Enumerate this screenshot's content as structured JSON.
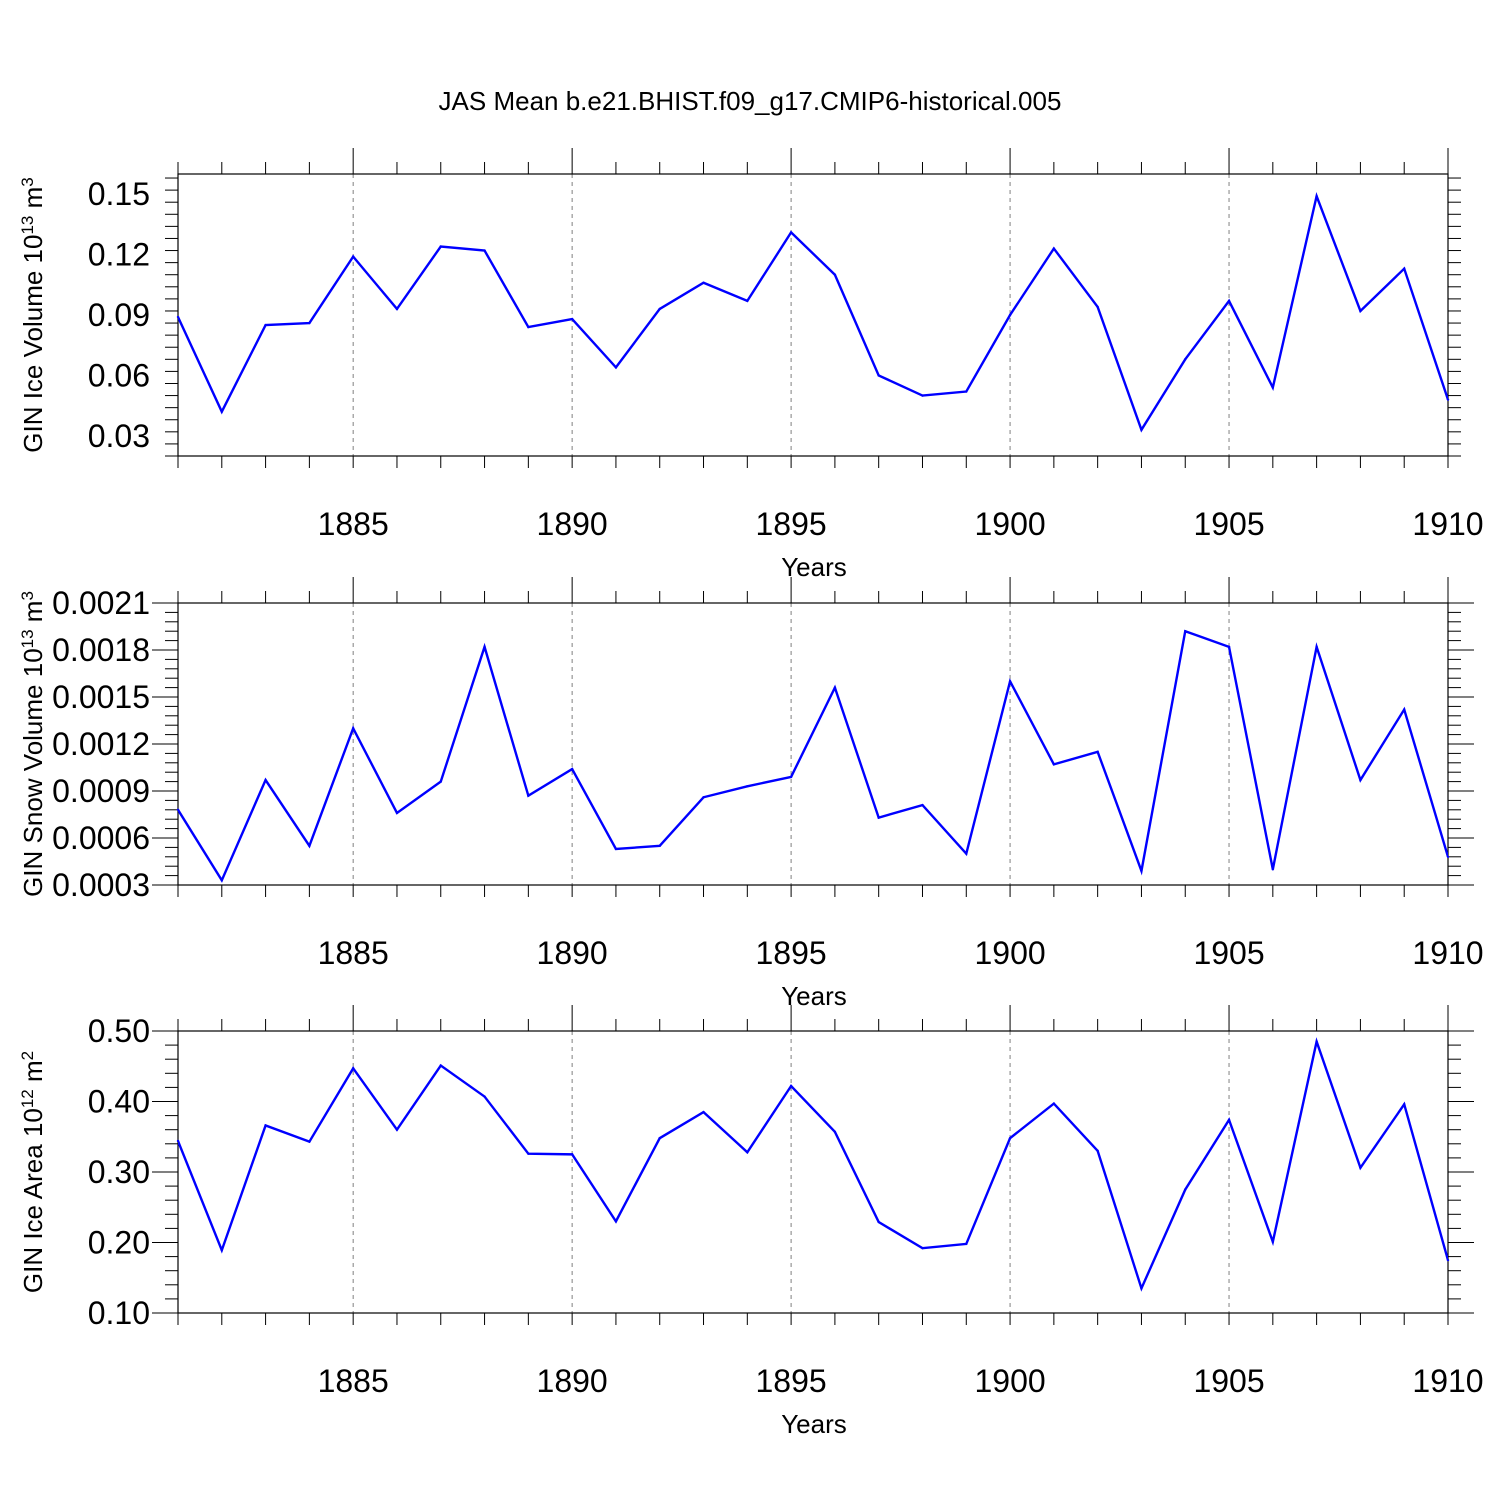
{
  "page_title": "JAS Mean b.e21.BHIST.f09_g17.CMIP6-historical.005",
  "colors": {
    "line": "#0000ff",
    "axis": "#000000",
    "grid": "#808080",
    "background": "#ffffff"
  },
  "chart_data": [
    {
      "type": "line",
      "title": "",
      "xlabel": "Years",
      "ylabel": {
        "text": "GIN Ice Volume 10",
        "exponent": "13",
        "unit": "m",
        "unit_exponent": "3"
      },
      "xlim": [
        1881,
        1910
      ],
      "ylim": [
        0.02,
        0.16
      ],
      "yticks": [
        0.03,
        0.06,
        0.09,
        0.12,
        0.15
      ],
      "ytick_labels": [
        "0.03",
        "0.06",
        "0.09",
        "0.12",
        "0.15"
      ],
      "xticks": [
        1885,
        1890,
        1895,
        1900,
        1905,
        1910
      ],
      "xtick_labels": [
        "1885",
        "1890",
        "1895",
        "1900",
        "1905",
        "1910"
      ],
      "grid": "vertical dashed at major x ticks",
      "series": [
        {
          "name": "GIN Ice Volume",
          "x": [
            1881,
            1882,
            1883,
            1884,
            1885,
            1886,
            1887,
            1888,
            1889,
            1890,
            1891,
            1892,
            1893,
            1894,
            1895,
            1896,
            1897,
            1898,
            1899,
            1900,
            1901,
            1902,
            1903,
            1904,
            1905,
            1906,
            1907,
            1908,
            1909,
            1910
          ],
          "values": [
            0.089,
            0.042,
            0.085,
            0.086,
            0.119,
            0.093,
            0.124,
            0.122,
            0.084,
            0.088,
            0.064,
            0.093,
            0.106,
            0.097,
            0.131,
            0.11,
            0.06,
            0.05,
            0.052,
            0.09,
            0.123,
            0.094,
            0.033,
            0.068,
            0.097,
            0.054,
            0.149,
            0.092,
            0.113,
            0.048
          ]
        }
      ]
    },
    {
      "type": "line",
      "title": "",
      "xlabel": "Years",
      "ylabel": {
        "text": "GIN Snow Volume 10",
        "exponent": "13",
        "unit": "m",
        "unit_exponent": "3"
      },
      "xlim": [
        1881,
        1910
      ],
      "ylim": [
        0.0003,
        0.0021
      ],
      "yticks": [
        0.0003,
        0.0006,
        0.0009,
        0.0012,
        0.0015,
        0.0018,
        0.0021
      ],
      "ytick_labels": [
        "0.0003",
        "0.0006",
        "0.0009",
        "0.0012",
        "0.0015",
        "0.0018",
        "0.0021"
      ],
      "xticks": [
        1885,
        1890,
        1895,
        1900,
        1905,
        1910
      ],
      "xtick_labels": [
        "1885",
        "1890",
        "1895",
        "1900",
        "1905",
        "1910"
      ],
      "grid": "vertical dashed at major x ticks",
      "series": [
        {
          "name": "GIN Snow Volume",
          "x": [
            1881,
            1882,
            1883,
            1884,
            1885,
            1886,
            1887,
            1888,
            1889,
            1890,
            1891,
            1892,
            1893,
            1894,
            1895,
            1896,
            1897,
            1898,
            1899,
            1900,
            1901,
            1902,
            1903,
            1904,
            1905,
            1906,
            1907,
            1908,
            1909,
            1910
          ],
          "values": [
            0.00078,
            0.00033,
            0.00097,
            0.00055,
            0.0013,
            0.00076,
            0.00096,
            0.00182,
            0.00087,
            0.00104,
            0.00053,
            0.00055,
            0.00086,
            0.00093,
            0.00099,
            0.00156,
            0.00073,
            0.00081,
            0.0005,
            0.0016,
            0.00107,
            0.00115,
            0.00039,
            0.00192,
            0.00182,
            0.0004,
            0.00182,
            0.00097,
            0.00142,
            0.00048
          ]
        }
      ]
    },
    {
      "type": "line",
      "title": "",
      "xlabel": "Years",
      "ylabel": {
        "text": "GIN Ice Area 10",
        "exponent": "12",
        "unit": "m",
        "unit_exponent": "2"
      },
      "xlim": [
        1881,
        1910
      ],
      "ylim": [
        0.1,
        0.5
      ],
      "yticks": [
        0.1,
        0.2,
        0.3,
        0.4,
        0.5
      ],
      "ytick_labels": [
        "0.10",
        "0.20",
        "0.30",
        "0.40",
        "0.50"
      ],
      "xticks": [
        1885,
        1890,
        1895,
        1900,
        1905,
        1910
      ],
      "xtick_labels": [
        "1885",
        "1890",
        "1895",
        "1900",
        "1905",
        "1910"
      ],
      "grid": "vertical dashed at major x ticks",
      "series": [
        {
          "name": "GIN Ice Area",
          "x": [
            1881,
            1882,
            1883,
            1884,
            1885,
            1886,
            1887,
            1888,
            1889,
            1890,
            1891,
            1892,
            1893,
            1894,
            1895,
            1896,
            1897,
            1898,
            1899,
            1900,
            1901,
            1902,
            1903,
            1904,
            1905,
            1906,
            1907,
            1908,
            1909,
            1910
          ],
          "values": [
            0.344,
            0.189,
            0.366,
            0.343,
            0.447,
            0.36,
            0.451,
            0.407,
            0.326,
            0.325,
            0.23,
            0.348,
            0.385,
            0.328,
            0.422,
            0.357,
            0.229,
            0.192,
            0.198,
            0.348,
            0.397,
            0.33,
            0.135,
            0.275,
            0.374,
            0.201,
            0.485,
            0.306,
            0.396,
            0.175
          ]
        }
      ]
    }
  ]
}
